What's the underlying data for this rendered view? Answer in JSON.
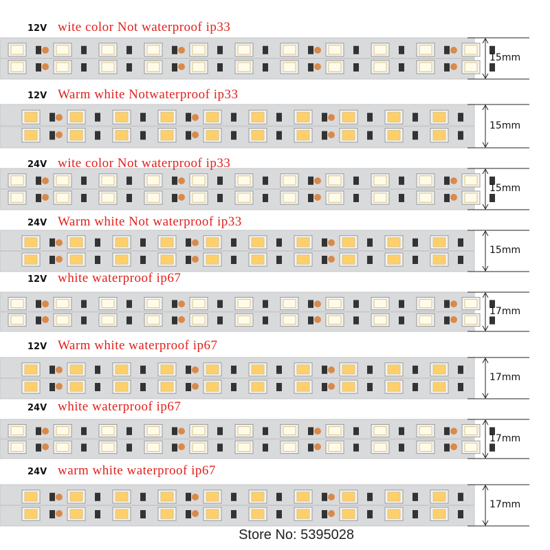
{
  "rows": [
    {
      "voltage": "12V",
      "label": "wite color Not waterproof ip33",
      "width": "15mm",
      "led_color": "#fffbe8"
    },
    {
      "voltage": "12V",
      "label": "Warm white Notwaterproof ip33",
      "width": "15mm",
      "led_color": "#ffcf6a"
    },
    {
      "voltage": "24V",
      "label": "wite color Not waterproof ip33",
      "width": "15mm",
      "led_color": "#fffbe8"
    },
    {
      "voltage": "24V",
      "label": "Warm white Not waterproof ip33",
      "width": "15mm",
      "led_color": "#ffcf6a"
    },
    {
      "voltage": "12V",
      "label": "white waterproof ip67",
      "width": "17mm",
      "led_color": "#fffbe8"
    },
    {
      "voltage": "12V",
      "label": "Warm white waterproof ip67",
      "width": "17mm",
      "led_color": "#ffcf6a"
    },
    {
      "voltage": "24V",
      "label": "white waterproof ip67",
      "width": "17mm",
      "led_color": "#fffbe8"
    },
    {
      "voltage": "24V",
      "label": "warm white waterproof ip67",
      "width": "17mm",
      "led_color": "#ffcf6a"
    }
  ],
  "footer": "Store No: 5395028"
}
